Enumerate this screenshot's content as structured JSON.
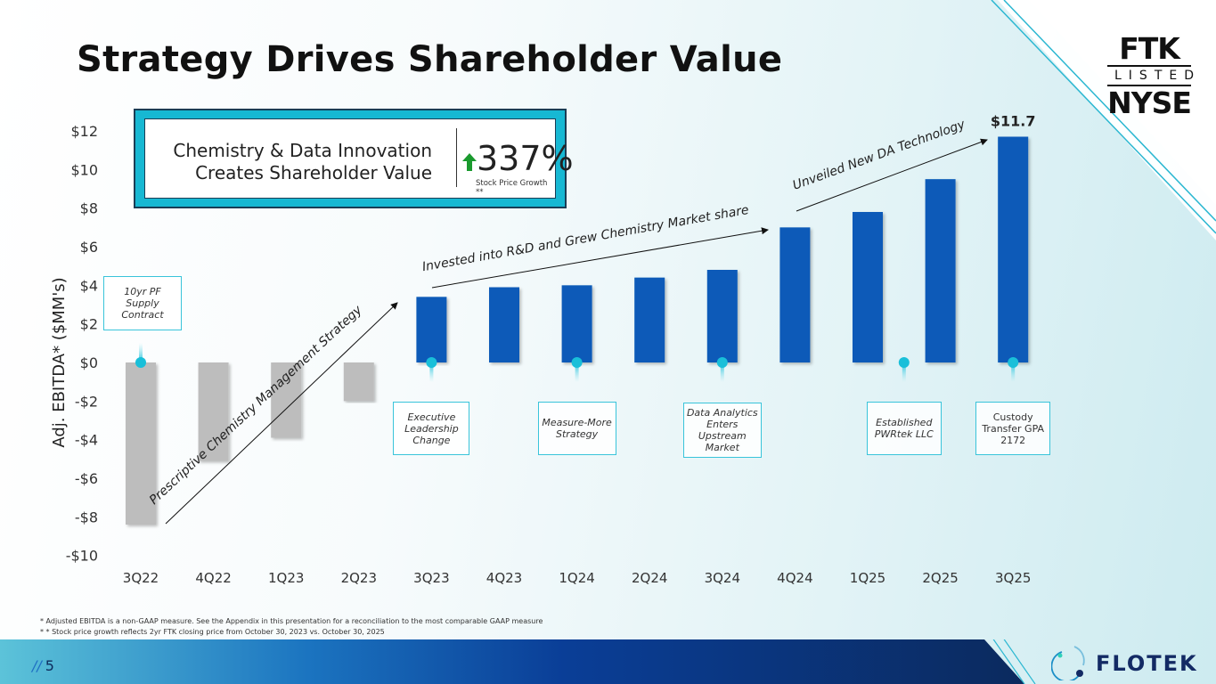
{
  "slide": {
    "title": "Strategy Drives Shareholder Value",
    "page_number": "5",
    "page_prefix": "//",
    "listing": {
      "top": "FTK",
      "middle": "LISTED",
      "bottom": "NYSE"
    },
    "brand": "FLOTEK",
    "colors": {
      "accent_cyan": "#17b8d3",
      "bar_positive": "#0a5ab8",
      "bar_negative": "#bdbdbd",
      "footer_dark": "#0b2a5e",
      "growth_arrow": "#1a9a2e"
    }
  },
  "callout": {
    "line1": "Chemistry & Data Innovation",
    "line2": "Creates Shareholder Value",
    "value": "337%",
    "sublabel": "Stock Price Growth **",
    "icon": "up-arrow-icon"
  },
  "footnotes": [
    "* Adjusted EBITDA is a non-GAAP measure.  See the Appendix in this presentation for a reconciliation to the most comparable GAAP measure",
    "* *  Stock price growth reflects 2yr FTK closing price from October 30, 2023 vs. October 30, 2025"
  ],
  "chart_data": {
    "type": "bar",
    "title": "",
    "xlabel": "",
    "ylabel": "Adj. EBITDA* ($MM's)",
    "ylim": [
      -10,
      12
    ],
    "yticks": [
      12,
      10,
      8,
      6,
      4,
      2,
      0,
      -2,
      -4,
      -6,
      -8,
      -10
    ],
    "ytick_labels": [
      "$12",
      "$10",
      "$8",
      "$6",
      "$4",
      "$2",
      "$0",
      "-$2",
      "-$4",
      "-$6",
      "-$8",
      "-$10"
    ],
    "grid": false,
    "categories": [
      "3Q22",
      "4Q22",
      "1Q23",
      "2Q23",
      "3Q23",
      "4Q23",
      "1Q24",
      "2Q24",
      "3Q24",
      "4Q24",
      "1Q25",
      "2Q25",
      "3Q25"
    ],
    "values": [
      -8.4,
      -5.1,
      -3.9,
      -2.0,
      3.4,
      3.9,
      4.0,
      4.4,
      4.8,
      7.0,
      7.8,
      9.5,
      11.7
    ],
    "data_labels": [
      {
        "category": "3Q25",
        "text": "$11.7"
      }
    ],
    "events": [
      {
        "after_category_index": 0,
        "text": "10yr PF Supply Contract",
        "position": "above"
      },
      {
        "after_category_index": 4,
        "text": "Executive Leadership Change",
        "position": "below"
      },
      {
        "after_category_index": 6,
        "text": "Measure-More Strategy",
        "position": "below"
      },
      {
        "after_category_index": 8,
        "text": "Data Analytics Enters Upstream Market",
        "position": "below"
      },
      {
        "after_category_index": 10.5,
        "text": "Established PWRtek LLC",
        "position": "below"
      },
      {
        "after_category_index": 12,
        "text": "Custody Transfer GPA 2172",
        "position": "below"
      }
    ],
    "annotations": [
      {
        "text": "Prescriptive Chemistry Management Strategy",
        "from_category": "3Q22",
        "to_category": "3Q23"
      },
      {
        "text": "Invested into R&D and Grew Chemistry Market share",
        "from_category": "3Q23",
        "to_category": "4Q24"
      },
      {
        "text": "Unveiled New DA Technology",
        "from_category": "4Q24",
        "to_category": "3Q25"
      }
    ]
  }
}
